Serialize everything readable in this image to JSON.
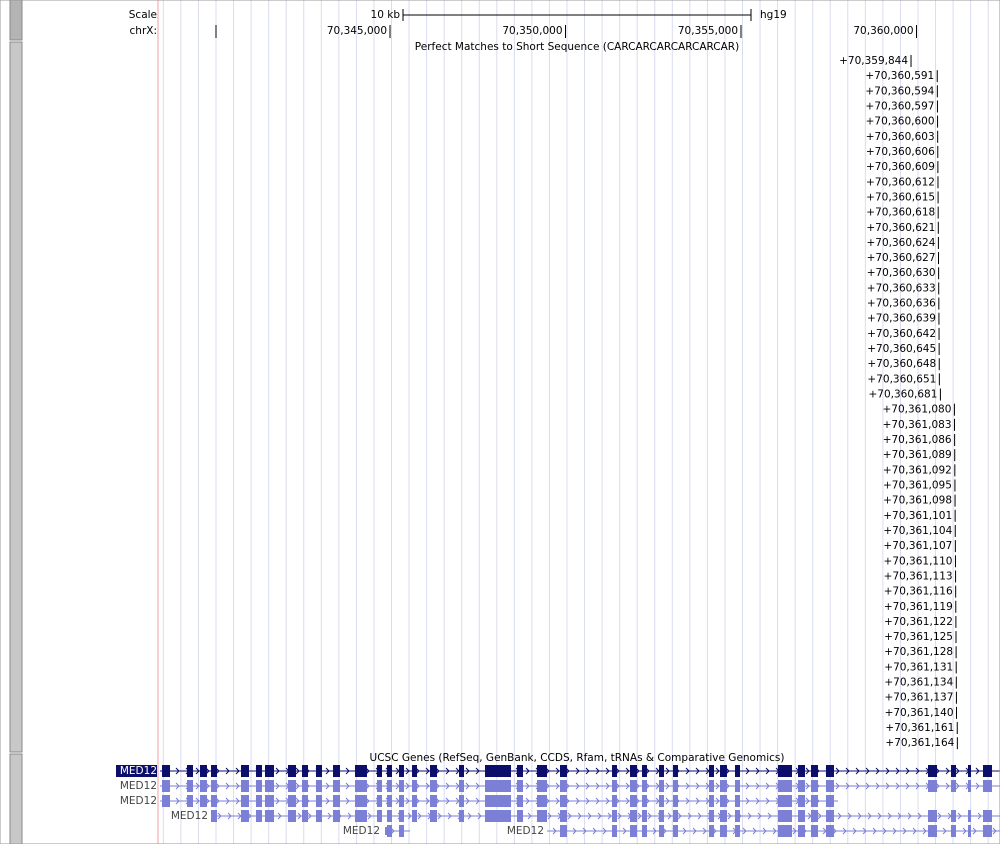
{
  "ruler": {
    "scale_label": "Scale",
    "scale_size": "10 kb",
    "assembly": "hg19",
    "chrom_label": "chrX:",
    "ticks": [
      {
        "value": 70345000,
        "label": "70,345,000"
      },
      {
        "value": 70350000,
        "label": "70,350,000"
      },
      {
        "value": 70355000,
        "label": "70,355,000"
      },
      {
        "value": 70360000,
        "label": "70,360,000"
      }
    ]
  },
  "tracks": [
    {
      "title": "Perfect Matches to Short Sequence (CARCARCARCARCARCAR)",
      "items": [
        "+70,359,844",
        "+70,360,591",
        "+70,360,594",
        "+70,360,597",
        "+70,360,600",
        "+70,360,603",
        "+70,360,606",
        "+70,360,609",
        "+70,360,612",
        "+70,360,615",
        "+70,360,618",
        "+70,360,621",
        "+70,360,624",
        "+70,360,627",
        "+70,360,630",
        "+70,360,633",
        "+70,360,636",
        "+70,360,639",
        "+70,360,642",
        "+70,360,645",
        "+70,360,648",
        "+70,360,651",
        "+70,360,681",
        "+70,361,080",
        "+70,361,083",
        "+70,361,086",
        "+70,361,089",
        "+70,361,092",
        "+70,361,095",
        "+70,361,098",
        "+70,361,101",
        "+70,361,104",
        "+70,361,107",
        "+70,361,110",
        "+70,361,113",
        "+70,361,116",
        "+70,361,119",
        "+70,361,122",
        "+70,361,125",
        "+70,361,128",
        "+70,361,131",
        "+70,361,134",
        "+70,361,137",
        "+70,361,140",
        "+70,361,161",
        "+70,361,164"
      ]
    },
    {
      "title": "UCSC Genes (RefSeq, GenBank, CCDS, Rfam, tRNAs & Comparative Genomics)",
      "items": [
        "MED12",
        "MED12",
        "MED12",
        "MED12",
        "MED12",
        "MED12"
      ]
    }
  ]
}
